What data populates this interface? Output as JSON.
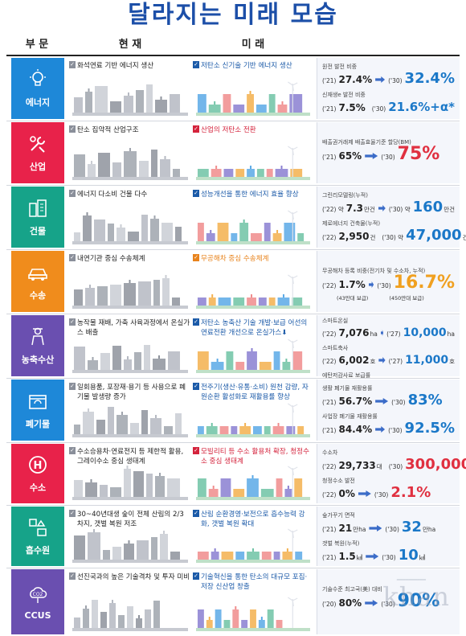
{
  "title": "달라지는 미래 모습",
  "headers": {
    "category": "부 문",
    "current": "현 재",
    "future": "미 래"
  },
  "rows": [
    {
      "category": "에너지",
      "color": "#1e88d8",
      "icon": "lightbulb-icon",
      "current": "화석연료 기반 에너지 생산",
      "future": "저탄소 신기술 기반 에너지 생산",
      "metrics": [
        {
          "label": "원전 발전 비중",
          "year1": "('21)",
          "value1": "27.4%",
          "year2": "('30)",
          "value2": "32.4%"
        },
        {
          "label": "신재생e 발전 비중",
          "year1": "('21)",
          "value1": "7.5%",
          "year2": "('30)",
          "value2": "21.6%+α*"
        }
      ]
    },
    {
      "category": "산업",
      "color": "#e8224a",
      "icon": "wrench-icon",
      "current": "탄소 집약적 산업구조",
      "future": "산업의 저탄소 전환",
      "metrics": [
        {
          "label": "배출권거래제 배출효율기준 할당(BM)",
          "year1": "('21)",
          "value1": "65%",
          "year2": "('30)",
          "value2": "75%"
        }
      ]
    },
    {
      "category": "건물",
      "color": "#16a389",
      "icon": "building-icon",
      "current": "에너지 다소비 건물 다수",
      "future": "성능개선을 통한 에너지 효율 향상",
      "metrics": [
        {
          "label": "그린리모델링(누적)",
          "year1": "('22) 약",
          "value1": "7.3",
          "unit1": "만건",
          "year2": "('30) 약",
          "value2": "160",
          "unit2": "만건"
        },
        {
          "label": "제로에너지 건축물(누적)",
          "year1": "('22)",
          "value1": "2,950",
          "unit1": "건",
          "year2": "('30) 약",
          "value2": "47,000",
          "unit2": "건"
        }
      ]
    },
    {
      "category": "수송",
      "color": "#f08c1c",
      "icon": "car-icon",
      "current": "내연기관 중심 수송체계",
      "future": "무공해차 중심 수송체계",
      "metrics": [
        {
          "label": "무공해차 등록 비중(전기차 및 수소차, 누적)",
          "year1": "('22)",
          "value1": "1.7%",
          "year2": "('30)",
          "value2": "16.7%",
          "note1": "(43만대 보급)",
          "note2": "(450만대 보급)"
        }
      ]
    },
    {
      "category": "농축수산",
      "color": "#6a4fb0",
      "icon": "farmer-icon",
      "current": "농작물 재배, 가축 사육과정에서 온실가스 배출",
      "future": "저탄소 농축산 기술 개발·보급 어선의 연료전환 개선으로 온실가스⬇",
      "metrics": [
        {
          "label": "스마트온실",
          "year1": "('22)",
          "value1": "7,076",
          "unit1": "ha",
          "year2": "('27)",
          "value2": "10,000",
          "unit2": "ha"
        },
        {
          "label": "스마트축사",
          "year1": "('22)",
          "value1": "6,002",
          "unit1": "호",
          "year2": "('27)",
          "value2": "11,000",
          "unit2": "호"
        },
        {
          "label": "에탄저감사료 보급률",
          "year1": "('22)",
          "value1": "0%",
          "year2": "('30)",
          "value2": "30%"
        }
      ]
    },
    {
      "category": "폐기물",
      "color": "#1e88d8",
      "icon": "recycle-box-icon",
      "current": "일회용품, 포장재·용기 등 사용으로 폐기물 발생량 증가",
      "future": "전주기(생산·유통·소비) 원천 감량, 자원순환 활성화로 재활용률 향상",
      "metrics": [
        {
          "label": "생활 폐기물 재활용률",
          "year1": "('21)",
          "value1": "56.7%",
          "year2": "('30)",
          "value2": "83%"
        },
        {
          "label": "사업장 폐기물 재활용률",
          "year1": "('21)",
          "value1": "84.4%",
          "year2": "('30)",
          "value2": "92.5%"
        }
      ]
    },
    {
      "category": "수소",
      "color": "#e8224a",
      "icon": "hydrogen-icon",
      "current": "수소승용차·연료전지 등 제한적 활용, 그레이수소 중심 생태계",
      "future": "모빌리티 등 수소 활용처 확장, 청정수소 중심 생태계",
      "metrics": [
        {
          "label": "수소차",
          "year1": "('22)",
          "value1": "29,733",
          "unit1": "대",
          "year2": "('30)",
          "value2": "300,000",
          "unit2": "대"
        },
        {
          "label": "청정수소 발전",
          "year1": "('22)",
          "value1": "0%",
          "year2": "('30)",
          "value2": "2.1%"
        }
      ]
    },
    {
      "category": "흡수원",
      "color": "#16a389",
      "icon": "tree-icon",
      "current": "30~40년대생 숲이 전체 산림의 2/3 차지, 갯벌 복원 저조",
      "future": "산림 순환경영·보전으로 흡수능력 강화, 갯벌 복원 확대",
      "metrics": [
        {
          "label": "숲가꾸기 면적",
          "year1": "('21)",
          "value1": "21",
          "unit1": "만ha",
          "year2": "('30)",
          "value2": "32",
          "unit2": "만ha"
        },
        {
          "label": "갯벌 복원(누적)",
          "year1": "('21)",
          "value1": "1.5",
          "unit1": "㎢",
          "year2": "('30)",
          "value2": "10",
          "unit2": "㎢"
        }
      ]
    },
    {
      "category": "CCUS",
      "color": "#6a4fb0",
      "icon": "co2-cloud-icon",
      "current": "선진국과의 높은 기술격차 및 투자 미비",
      "future": "기술혁신을 통한 탄소의 대규모 포집·저장 신산업 창출",
      "metrics": [
        {
          "label": "기술수준 최고국(美) 대비",
          "year1": "('20)",
          "value1": "80%",
          "year2": "('30)",
          "value2": "90%"
        }
      ]
    }
  ],
  "watermark": "khan"
}
